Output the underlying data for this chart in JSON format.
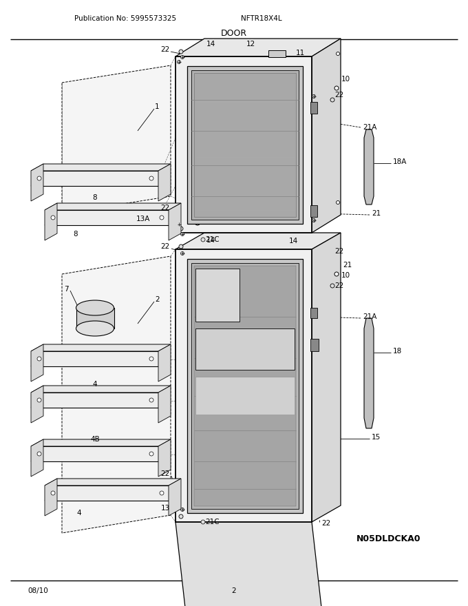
{
  "publication_no": "Publication No: 5995573325",
  "model": "NFTR18X4L",
  "section": "DOOR",
  "footer_left": "08/10",
  "footer_center": "2",
  "image_code": "N05DLDCKA0",
  "bg_color": "#ffffff",
  "line_color": "#000000",
  "fig_width": 6.8,
  "fig_height": 8.8,
  "dpi": 100,
  "header_fontsize": 7.5,
  "title_fontsize": 9,
  "label_fontsize": 7.5
}
